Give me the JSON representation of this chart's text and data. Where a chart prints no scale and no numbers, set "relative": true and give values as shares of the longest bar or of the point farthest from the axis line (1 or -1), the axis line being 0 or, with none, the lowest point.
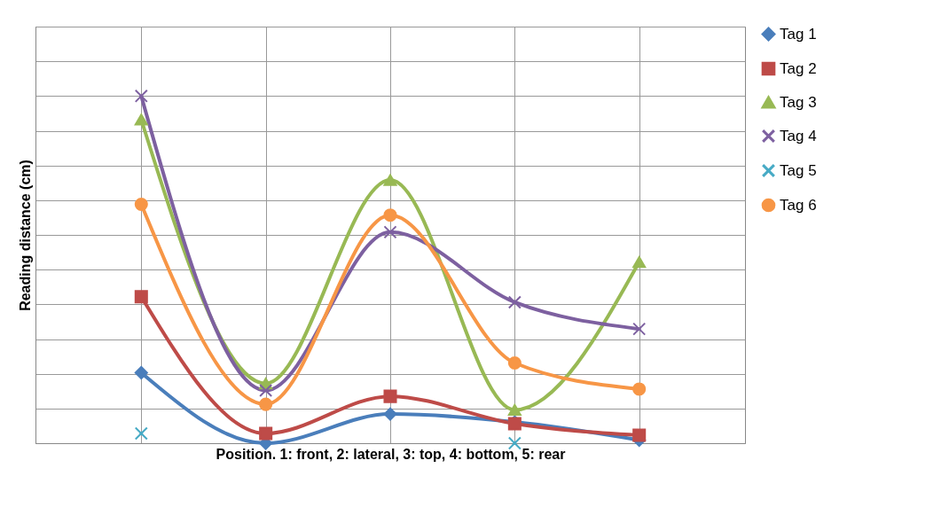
{
  "chart_data": {
    "type": "line",
    "xlabel": "Position. 1: front, 2: lateral, 3: top, 4: bottom, 5: rear",
    "ylabel": "Reading distance (cm)",
    "relative": true,
    "categories": [
      null,
      null,
      null,
      null,
      null
    ],
    "grid": true,
    "legend": "right",
    "series": [
      {
        "name": "Tag 1",
        "color": "#4a7ebb",
        "marker": "diamond",
        "values": [
          0.203,
          0,
          0.084,
          0.061,
          0.009
        ]
      },
      {
        "name": "Tag 2",
        "color": "#be4b48",
        "marker": "square",
        "values": [
          0.422,
          0.028,
          0.135,
          0.056,
          0.023
        ]
      },
      {
        "name": "Tag 3",
        "color": "#98b954",
        "marker": "triangle",
        "values": [
          0.932,
          0.172,
          0.758,
          0.096,
          0.522
        ]
      },
      {
        "name": "Tag 4",
        "color": "#7d60a0",
        "marker": "cross",
        "values": [
          1,
          0.152,
          0.608,
          0.406,
          0.329
        ]
      },
      {
        "name": "Tag 5",
        "color": "#46aac5",
        "marker": "cross",
        "values": [
          0.028,
          null,
          null,
          0,
          null
        ]
      },
      {
        "name": "Tag 6",
        "color": "#f79646",
        "marker": "circle",
        "values": [
          0.688,
          0.112,
          0.657,
          0.231,
          0.156
        ]
      }
    ]
  }
}
